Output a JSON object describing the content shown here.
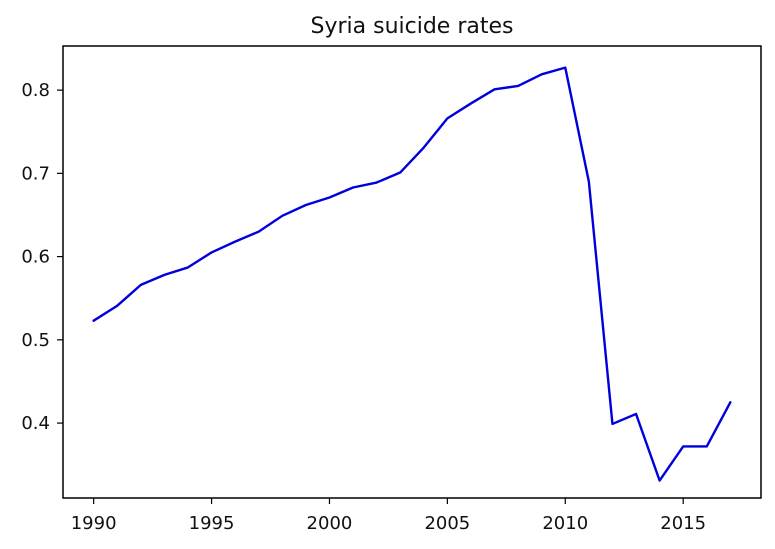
{
  "chart_data": {
    "type": "line",
    "title": "Syria suicide rates",
    "xlabel": "",
    "ylabel": "",
    "xlim": [
      1988.7,
      2018.3
    ],
    "ylim": [
      0.31,
      0.853
    ],
    "x_ticks": [
      1990,
      1995,
      2000,
      2005,
      2010,
      2015
    ],
    "y_ticks": [
      0.4,
      0.5,
      0.6,
      0.7,
      0.8
    ],
    "x_tick_labels": [
      "1990",
      "1995",
      "2000",
      "2005",
      "2010",
      "2015"
    ],
    "y_tick_labels": [
      "0.4",
      "0.5",
      "0.6",
      "0.7",
      "0.8"
    ],
    "grid": false,
    "legend": null,
    "series": [
      {
        "name": "Syria",
        "color": "#0000dd",
        "x": [
          1990,
          1991,
          1992,
          1993,
          1994,
          1995,
          1996,
          1997,
          1998,
          1999,
          2000,
          2001,
          2002,
          2003,
          2004,
          2005,
          2006,
          2007,
          2008,
          2009,
          2010,
          2011,
          2012,
          2013,
          2014,
          2015,
          2016,
          2017
        ],
        "values": [
          0.523,
          0.541,
          0.566,
          0.578,
          0.587,
          0.605,
          0.618,
          0.63,
          0.649,
          0.662,
          0.671,
          0.683,
          0.689,
          0.701,
          0.731,
          0.766,
          0.784,
          0.801,
          0.805,
          0.819,
          0.827,
          0.69,
          0.399,
          0.411,
          0.331,
          0.372,
          0.372,
          0.425
        ]
      }
    ]
  }
}
